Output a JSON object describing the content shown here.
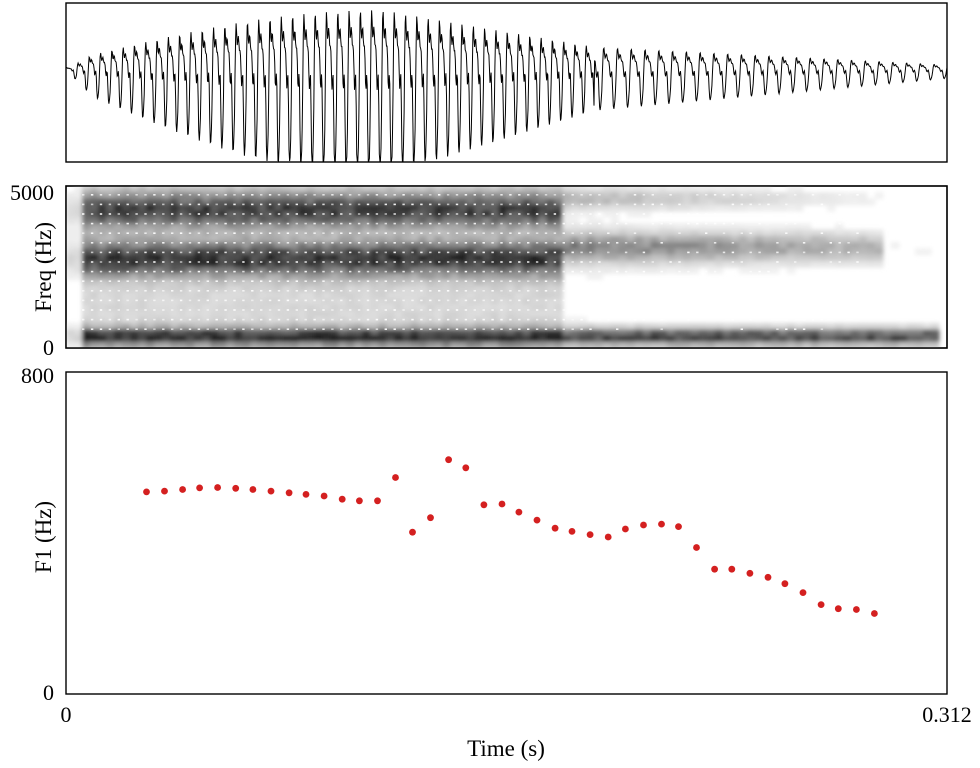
{
  "chart_data": [
    {
      "type": "line",
      "panel": "waveform",
      "xlim": [
        0,
        0.312
      ],
      "grid": false
    },
    {
      "type": "heatmap",
      "panel": "spectrogram",
      "ylabel": "Freq (Hz)",
      "ylim": [
        0,
        5000
      ],
      "yticks": [
        "5000",
        "0"
      ],
      "xlim": [
        0,
        0.312
      ],
      "colormap": "grayscale",
      "grid": false
    },
    {
      "type": "scatter",
      "panel": "f1-track",
      "xlabel": "Time (s)",
      "ylabel": "F1 (Hz)",
      "xlim": [
        0,
        0.312
      ],
      "ylim": [
        0,
        800
      ],
      "xticks": [
        "0",
        "0.312"
      ],
      "yticks": [
        "800",
        "0"
      ],
      "marker_color": "#d42020",
      "grid": false,
      "x": [
        0.0285,
        0.0349,
        0.0413,
        0.0473,
        0.0537,
        0.0601,
        0.0662,
        0.0726,
        0.079,
        0.085,
        0.0914,
        0.0978,
        0.1039,
        0.1103,
        0.1167,
        0.1227,
        0.1291,
        0.1355,
        0.1416,
        0.148,
        0.1544,
        0.1604,
        0.1668,
        0.1732,
        0.1792,
        0.1856,
        0.192,
        0.1981,
        0.2045,
        0.2109,
        0.2169,
        0.2233,
        0.2297,
        0.2358,
        0.2422,
        0.2486,
        0.2546,
        0.261,
        0.2674,
        0.2735,
        0.2799,
        0.2863
      ],
      "values": [
        502,
        504,
        508,
        512,
        513,
        511,
        508,
        504,
        500,
        496,
        492,
        484,
        480,
        480,
        538,
        402,
        438,
        582,
        562,
        470,
        472,
        452,
        432,
        412,
        404,
        396,
        390,
        410,
        420,
        422,
        416,
        364,
        310,
        310,
        300,
        290,
        274,
        252,
        222,
        212,
        210,
        200
      ]
    }
  ]
}
